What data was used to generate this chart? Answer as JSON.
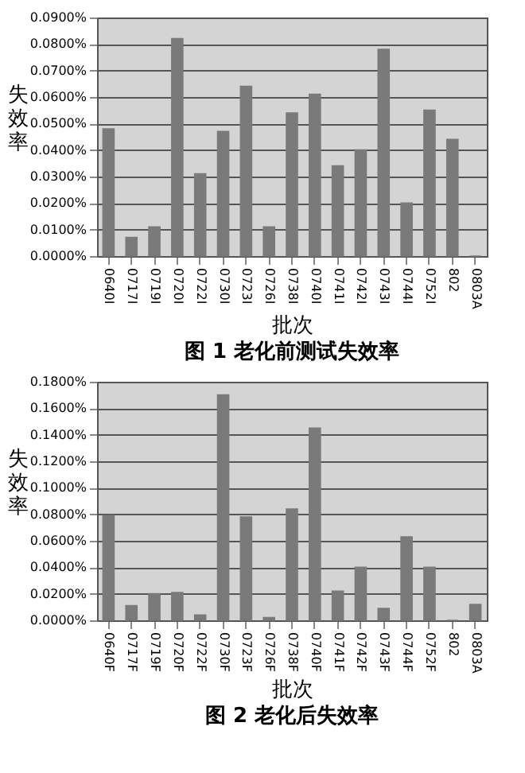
{
  "chart_data": [
    {
      "type": "bar",
      "title": "图 1 老化前测试失效率",
      "xlabel": "批次",
      "ylabel": "失效率",
      "color": "#7a7a7a",
      "grid": "y",
      "legend": false,
      "categories": [
        "0640I",
        "0717I",
        "0719I",
        "0720I",
        "0722I",
        "0730I",
        "0723I",
        "0726I",
        "0738I",
        "0740I",
        "0741I",
        "0742I",
        "0743I",
        "0744I",
        "0752I",
        "802",
        "0803A"
      ],
      "values": [
        0.048,
        0.007,
        0.011,
        0.082,
        0.031,
        0.047,
        0.064,
        0.011,
        0.054,
        0.061,
        0.034,
        0.04,
        0.078,
        0.02,
        0.055,
        0.044,
        0
      ],
      "ylim": [
        0,
        0.09
      ],
      "yticks": [
        {
          "value": 0,
          "label": "0.0000%"
        },
        {
          "value": 0.01,
          "label": "0.0100%"
        },
        {
          "value": 0.02,
          "label": "0.0200%"
        },
        {
          "value": 0.03,
          "label": "0.0300%"
        },
        {
          "value": 0.04,
          "label": "0.0400%"
        },
        {
          "value": 0.05,
          "label": "0.0500%"
        },
        {
          "value": 0.06,
          "label": "0.0600%"
        },
        {
          "value": 0.07,
          "label": "0.0700%"
        },
        {
          "value": 0.08,
          "label": "0.0800%"
        },
        {
          "value": 0.09,
          "label": "0.0900%"
        }
      ]
    },
    {
      "type": "bar",
      "title": "图 2 老化后失效率",
      "xlabel": "批次",
      "ylabel": "失效率",
      "color": "#7a7a7a",
      "grid": "y",
      "legend": false,
      "categories": [
        "0640F",
        "0717F",
        "0719F",
        "0720F",
        "0722F",
        "0730F",
        "0723F",
        "0726F",
        "0738F",
        "0740F",
        "0741F",
        "0742F",
        "0743F",
        "0744F",
        "0752F",
        "802",
        "0803A"
      ],
      "values": [
        0.079,
        0.011,
        0.02,
        0.021,
        0.004,
        0.17,
        0.078,
        0.002,
        0.084,
        0.145,
        0.022,
        0.04,
        0.009,
        0.063,
        0.04,
        0,
        0.012
      ],
      "ylim": [
        0,
        0.18
      ],
      "yticks": [
        {
          "value": 0,
          "label": "0.0000%"
        },
        {
          "value": 0.02,
          "label": "0.0200%"
        },
        {
          "value": 0.04,
          "label": "0.0400%"
        },
        {
          "value": 0.06,
          "label": "0.0600%"
        },
        {
          "value": 0.08,
          "label": "0.0800%"
        },
        {
          "value": 0.1,
          "label": "0.1000%"
        },
        {
          "value": 0.12,
          "label": "0.1200%"
        },
        {
          "value": 0.14,
          "label": "0.1400%"
        },
        {
          "value": 0.16,
          "label": "0.1600%"
        },
        {
          "value": 0.18,
          "label": "0.1800%"
        }
      ]
    }
  ]
}
